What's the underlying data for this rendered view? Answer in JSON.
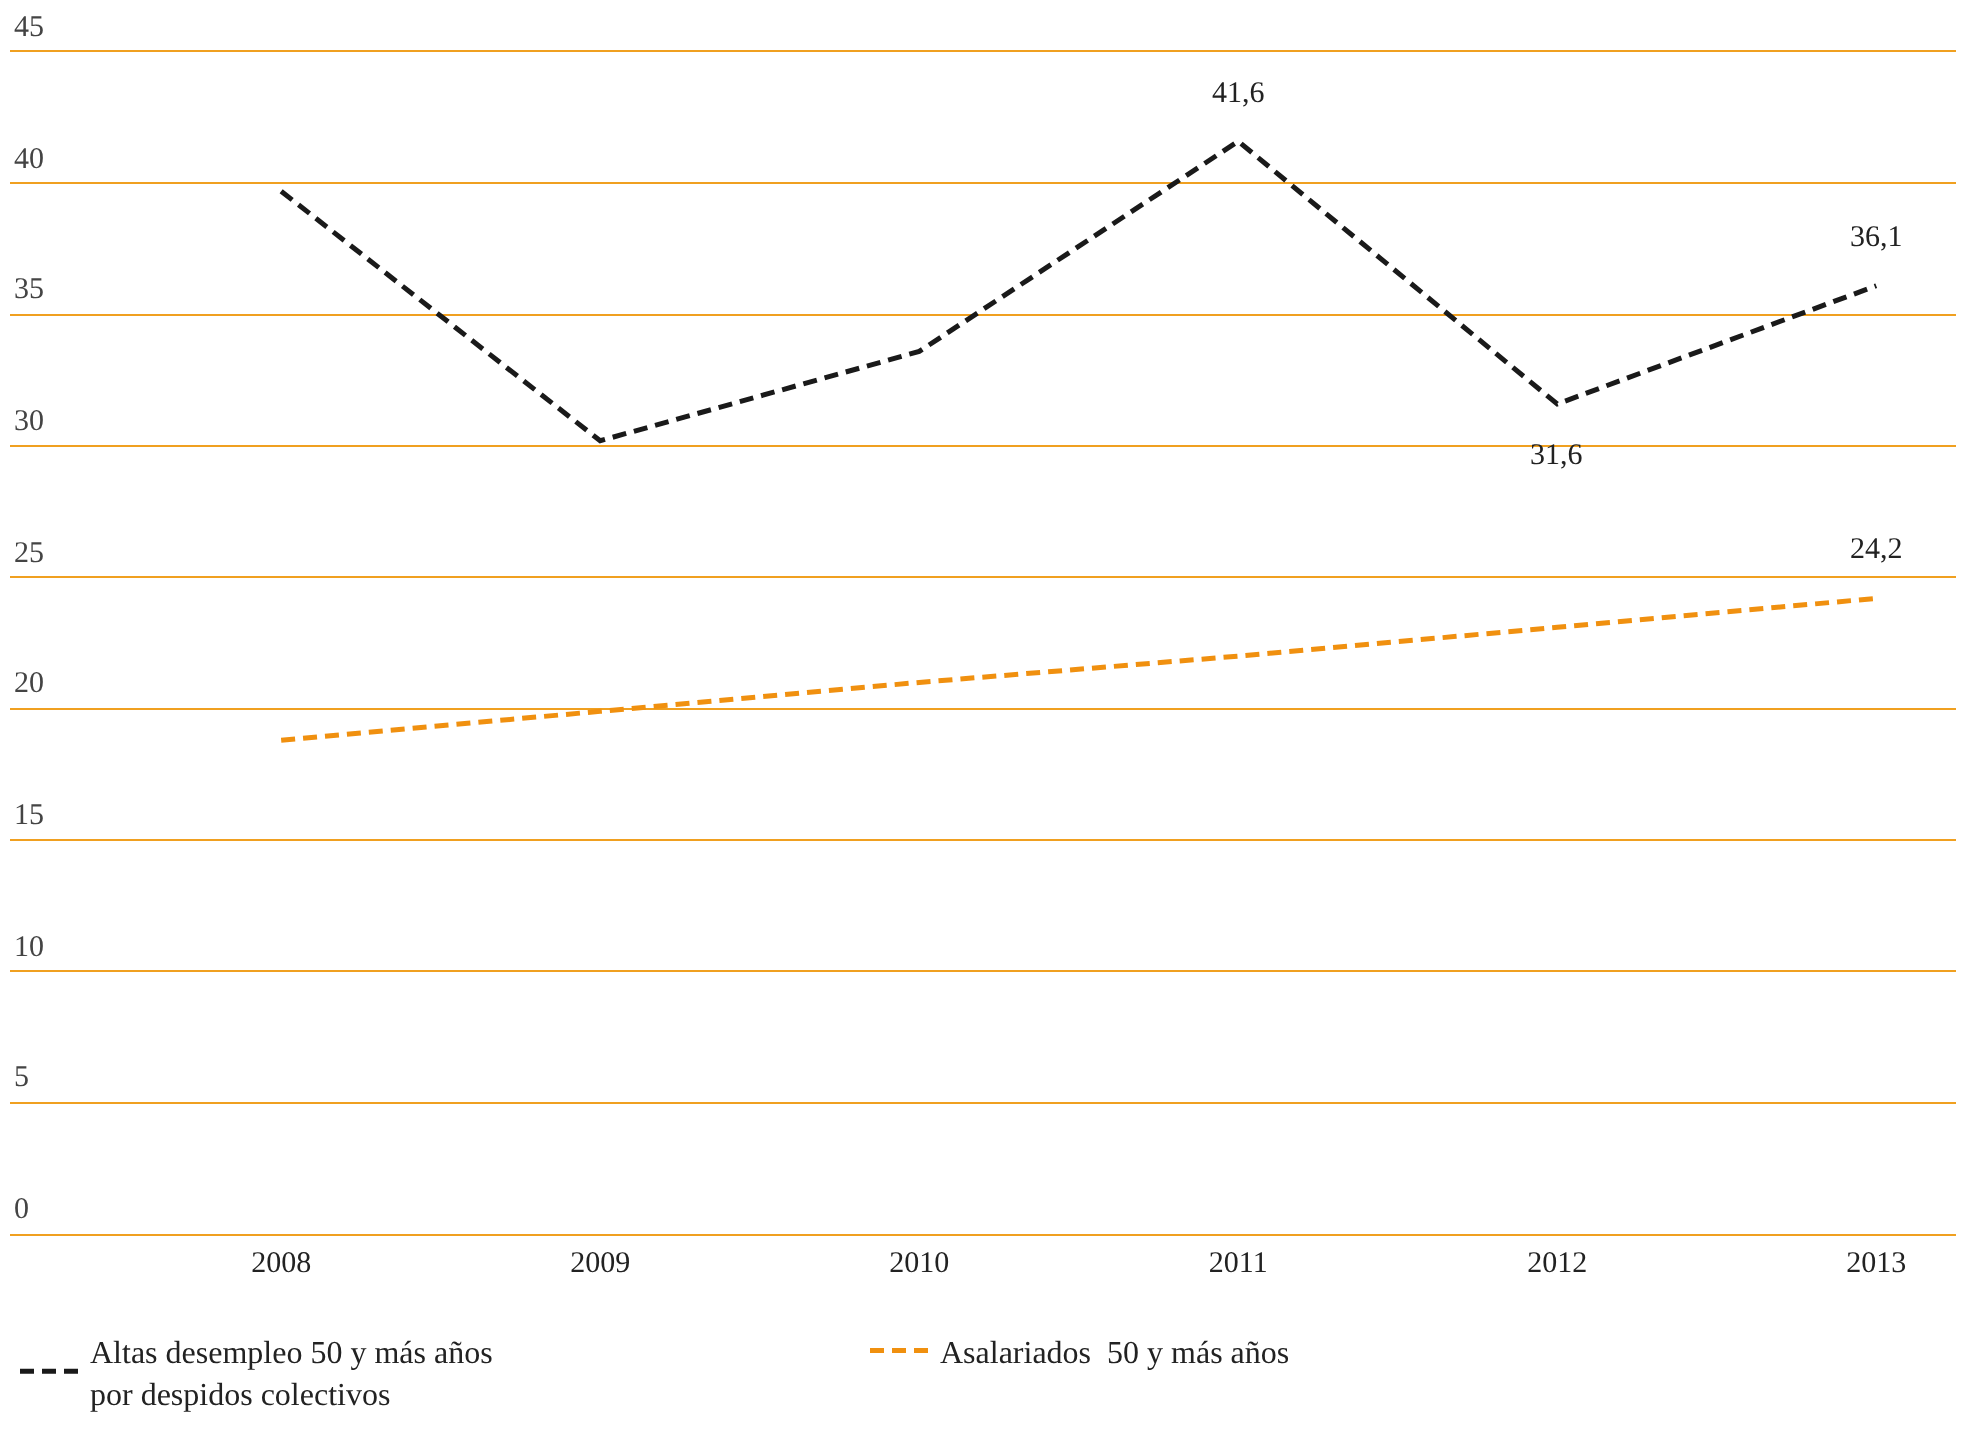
{
  "chart_data": {
    "type": "line",
    "categories": [
      "2008",
      "2009",
      "2010",
      "2011",
      "2012",
      "2013"
    ],
    "series": [
      {
        "name": "Altas desempleo 50 y más años\npor despidos colectivos",
        "color": "#1a1a1a",
        "values": [
          39.7,
          30.2,
          33.6,
          41.6,
          31.6,
          36.1
        ],
        "value_labels": [
          null,
          null,
          null,
          "41,6",
          "31,6",
          "36,1"
        ]
      },
      {
        "name": "Asalariados  50 y más años",
        "color": "#f0900f",
        "values": [
          18.8,
          19.9,
          21.0,
          22.0,
          23.1,
          24.2
        ],
        "value_labels": [
          null,
          null,
          null,
          null,
          null,
          "24,2"
        ]
      }
    ],
    "ylim": [
      0,
      45
    ],
    "yticks": [
      0,
      5,
      10,
      15,
      20,
      25,
      30,
      35,
      40,
      45
    ],
    "grid": "y",
    "legend": "bottom",
    "marker": "none",
    "line_style": "dashed"
  }
}
